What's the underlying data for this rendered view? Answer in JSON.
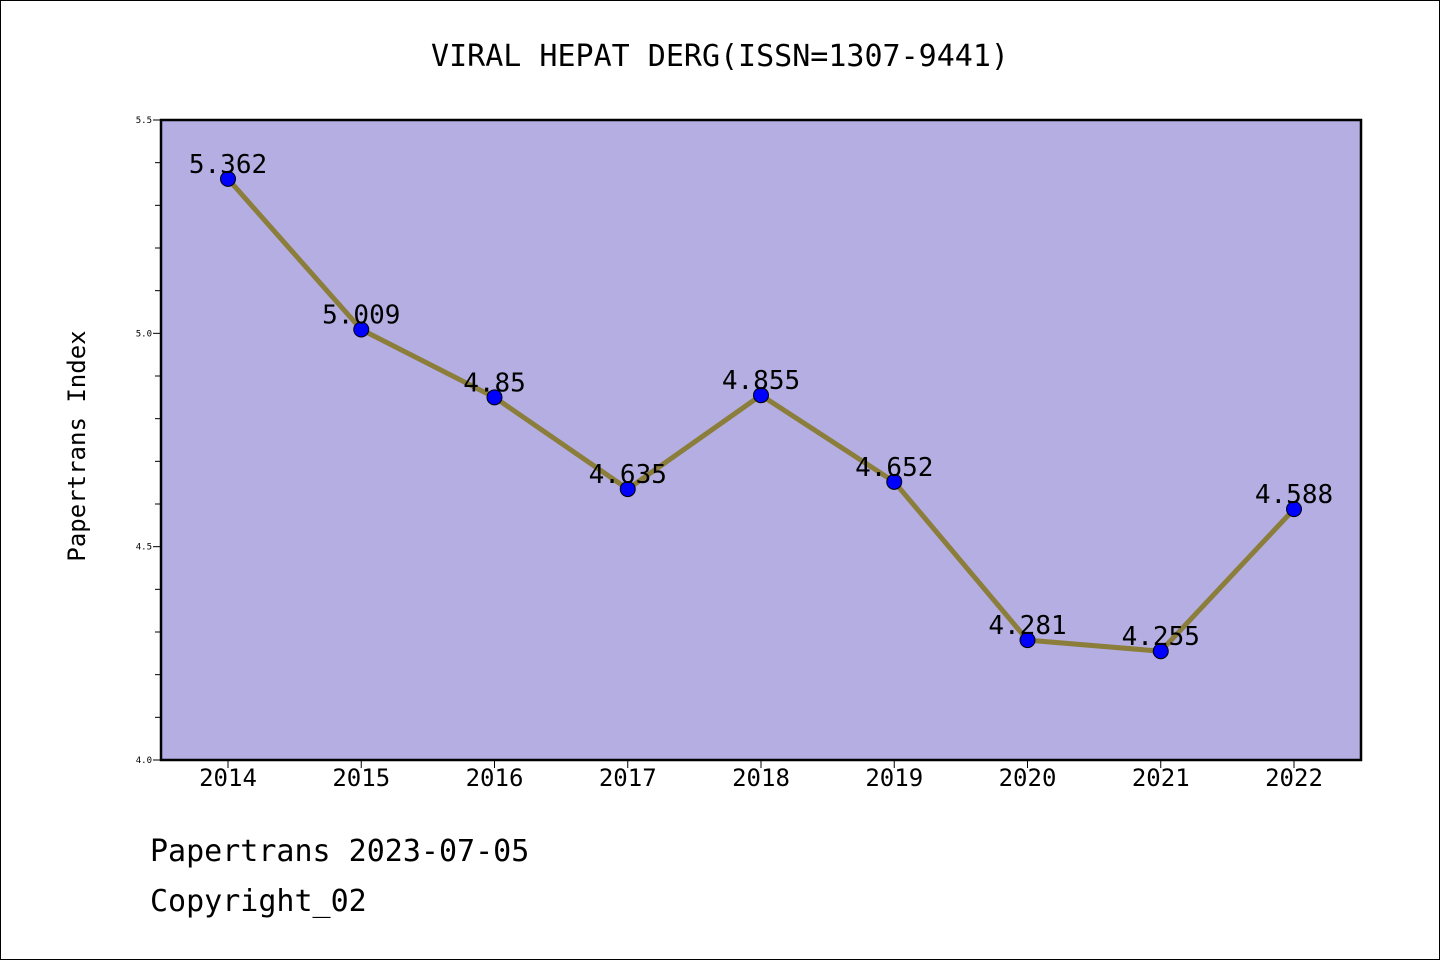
{
  "chart_data": {
    "type": "line",
    "title": "VIRAL HEPAT DERG(ISSN=1307-9441)",
    "xlabel": "",
    "ylabel": "Papertrans Index",
    "categories": [
      "2014",
      "2015",
      "2016",
      "2017",
      "2018",
      "2019",
      "2020",
      "2021",
      "2022"
    ],
    "series": [
      {
        "values": [
          5.362,
          5.009,
          4.85,
          4.635,
          4.855,
          4.652,
          4.281,
          4.255,
          4.588
        ]
      }
    ],
    "data_labels": [
      "5.362",
      "5.009",
      "4.85",
      "4.635",
      "4.855",
      "4.652",
      "4.281",
      "4.255",
      "4.588"
    ],
    "ylim": [
      4.0,
      5.5
    ],
    "yticks": [
      "4.0",
      "4.5",
      "5.0",
      "5.5"
    ],
    "grid": false,
    "colors": {
      "background": "#b4aee2",
      "line": "#8b7d3a",
      "marker": "#0000ff"
    }
  },
  "footer": {
    "line1": "Papertrans 2023-07-05",
    "line2": "Copyright_02"
  }
}
